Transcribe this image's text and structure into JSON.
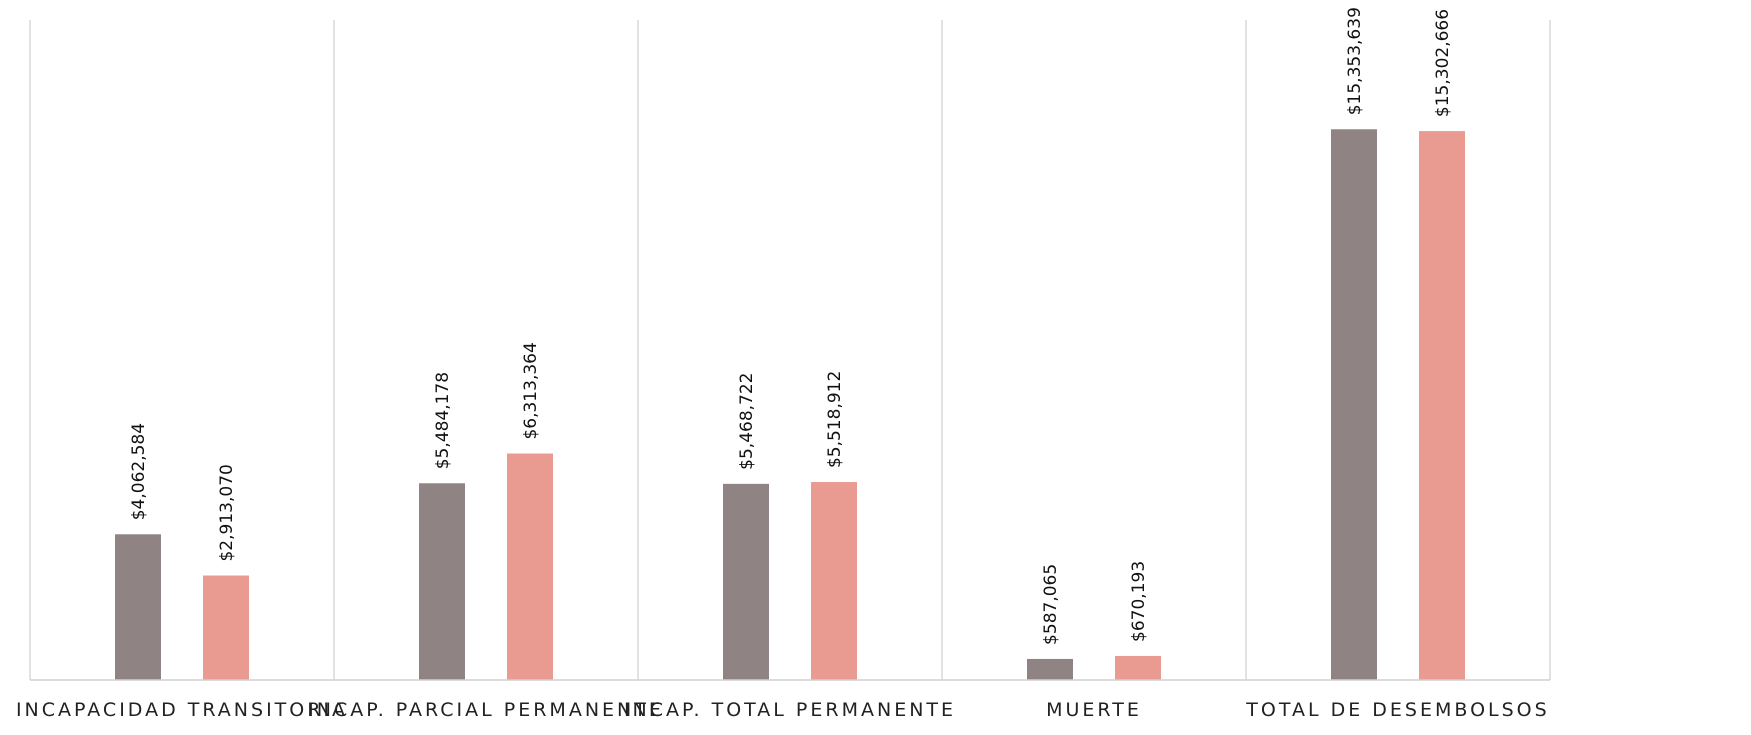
{
  "chart_data": {
    "type": "bar",
    "categories": [
      "INCAPACIDAD TRANSITORIA",
      "INCAP. PARCIAL PERMANENTE",
      "INCAP. TOTAL PERMANENTE",
      "MUERTE",
      "TOTAL DE DESEMBOLSOS"
    ],
    "series": [
      {
        "values": [
          4062584,
          5484178,
          5468722,
          587065,
          15353639
        ],
        "labels": [
          "$4,062,584",
          "$5,484,178",
          "$5,468,722",
          "$587,065",
          "$15,353,639"
        ],
        "color": "#8f8483"
      },
      {
        "values": [
          2913070,
          6313364,
          5518912,
          670193,
          15302666
        ],
        "labels": [
          "$2,913,070",
          "$6,313,364",
          "$5,518,912",
          "$670,193",
          "$15,302,666"
        ],
        "color": "#e99b91"
      }
    ],
    "ylim": [
      0,
      18400000
    ],
    "grid": "vertical category separators",
    "legend": "none",
    "title": "",
    "xlabel": "",
    "ylabel": ""
  }
}
